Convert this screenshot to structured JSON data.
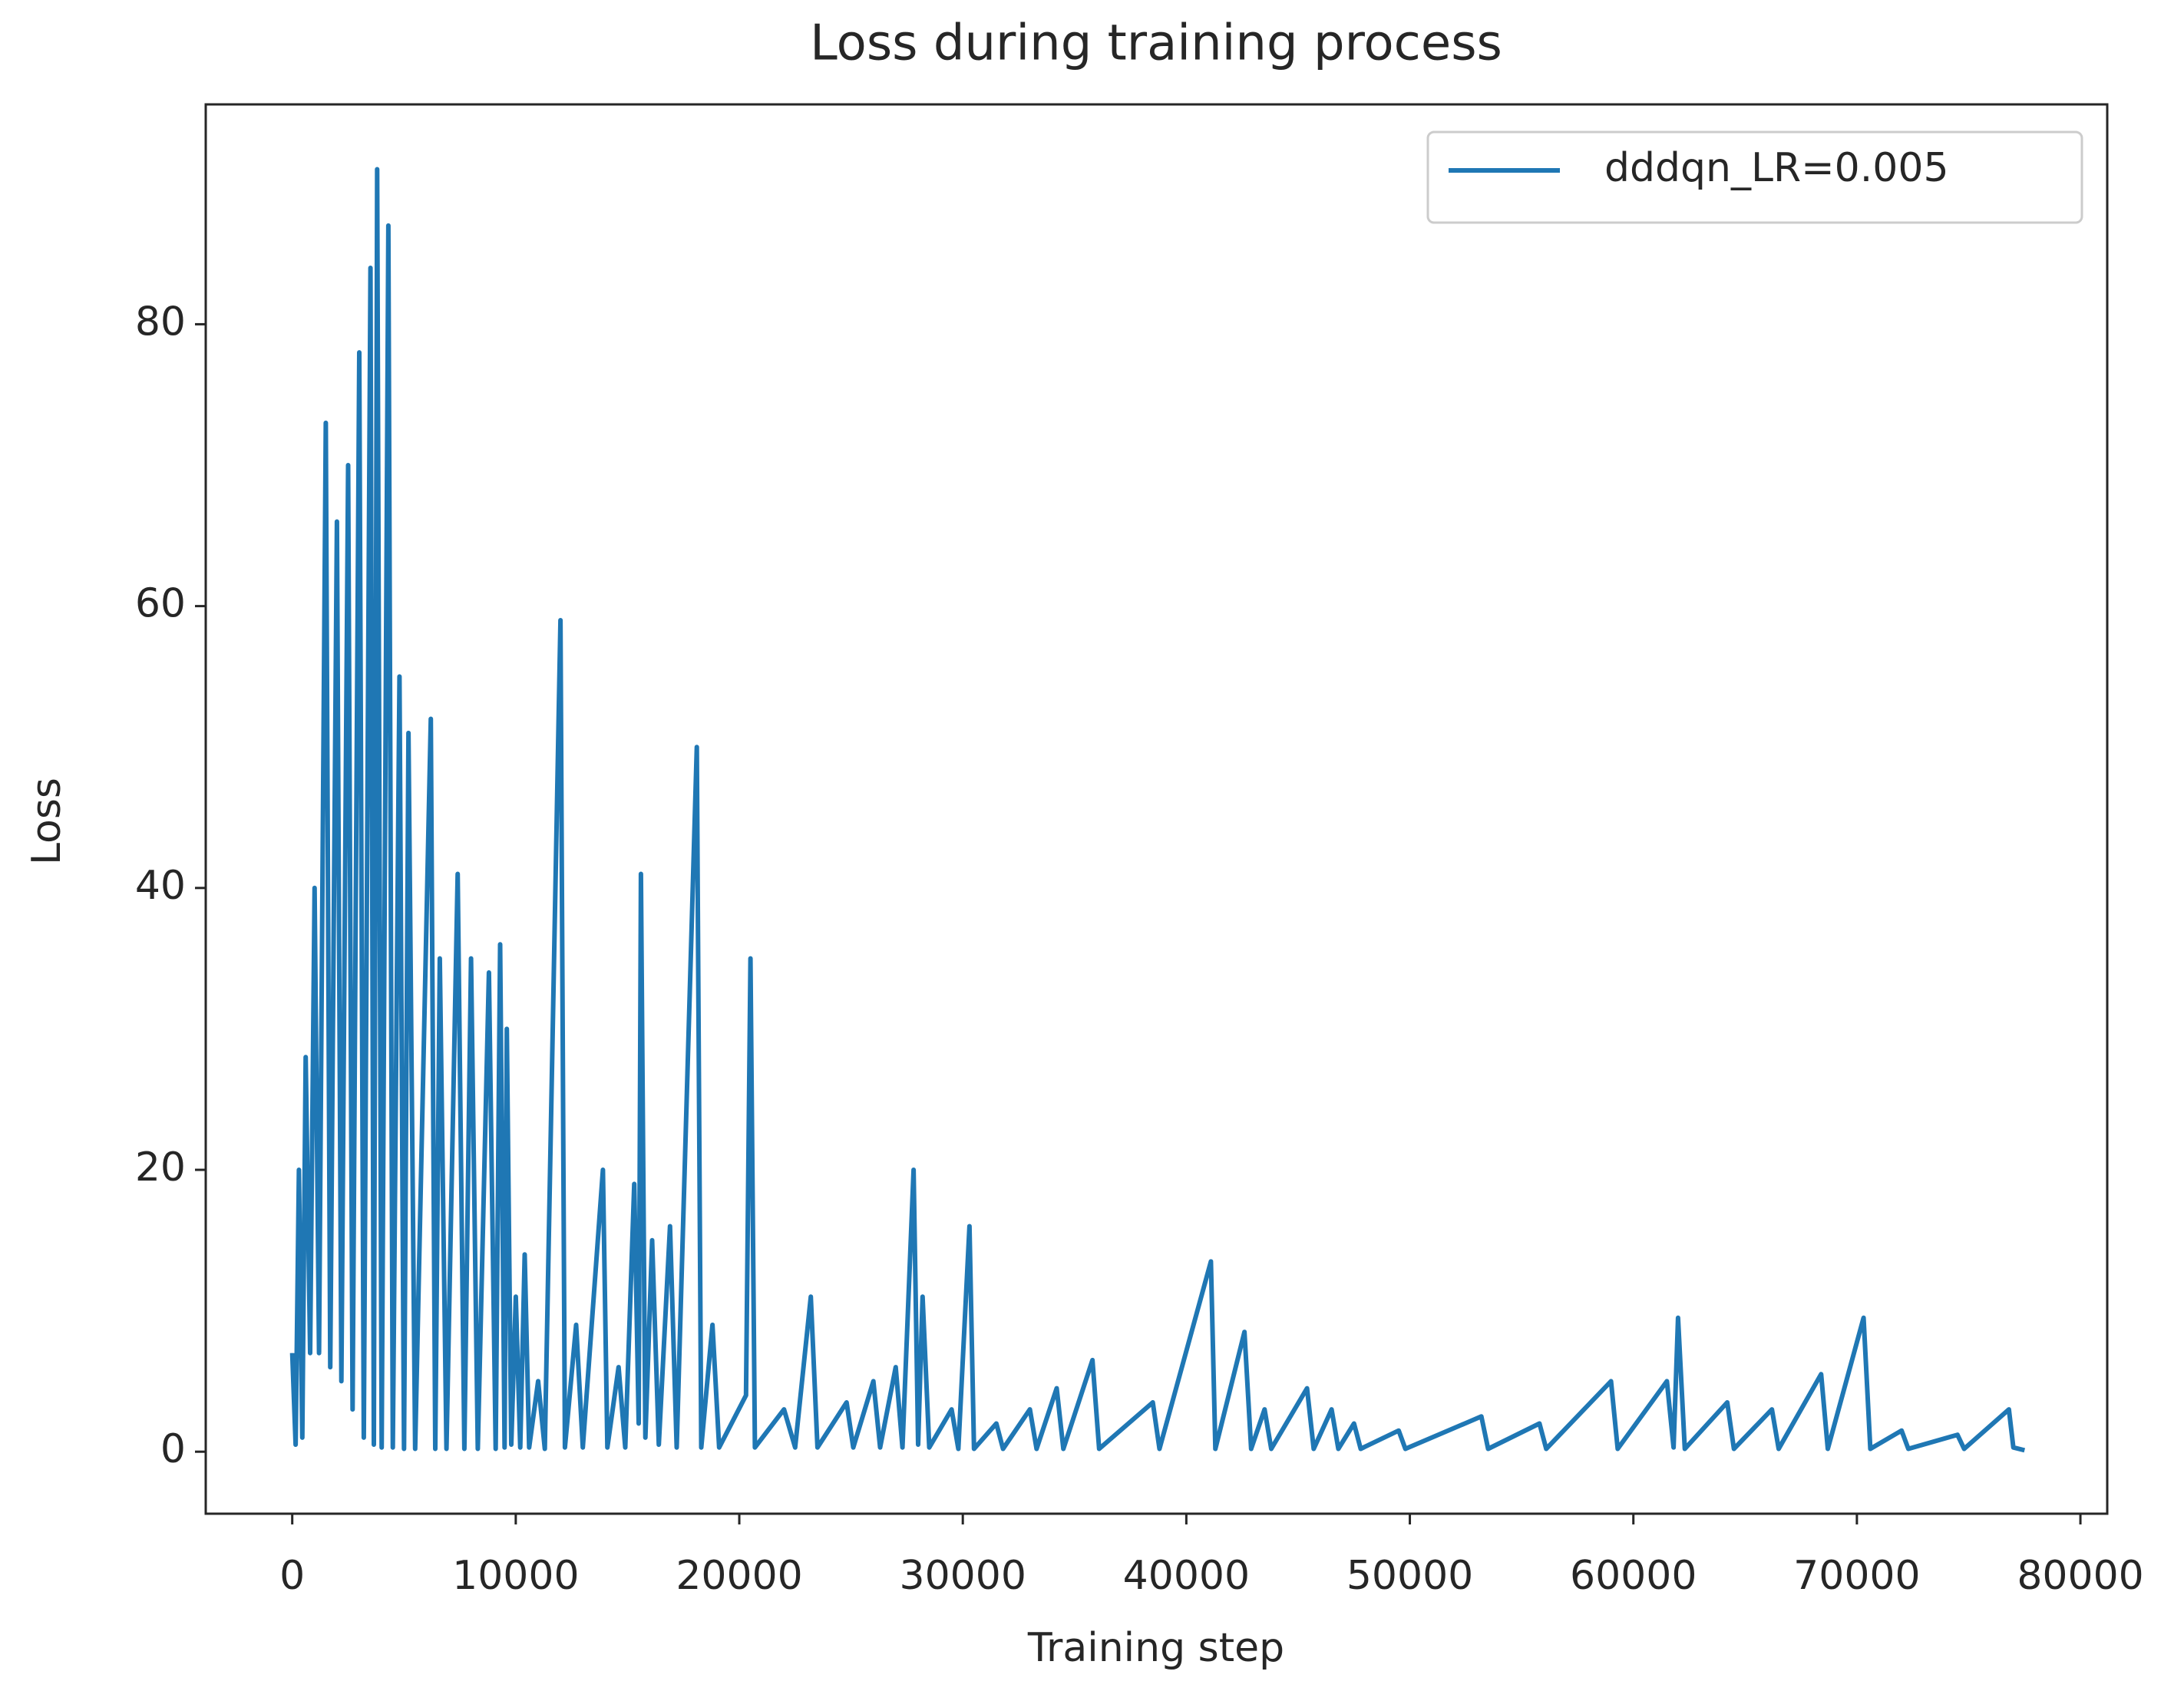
{
  "chart_data": {
    "type": "line",
    "title": "Loss during training process",
    "x_label": "Training step",
    "y_label": "Loss",
    "x": [
      0,
      150,
      300,
      450,
      600,
      800,
      1000,
      1200,
      1500,
      1700,
      2000,
      2200,
      2500,
      2700,
      3000,
      3200,
      3500,
      3650,
      3800,
      4000,
      4300,
      4500,
      4800,
      5000,
      5200,
      5500,
      6200,
      6400,
      6600,
      6900,
      7400,
      7700,
      8000,
      8300,
      8800,
      9100,
      9300,
      9500,
      9600,
      9800,
      10000,
      10200,
      10400,
      10600,
      11000,
      11300,
      12000,
      12200,
      12700,
      13000,
      13900,
      14100,
      14600,
      14900,
      15300,
      15500,
      15600,
      15800,
      16100,
      16400,
      16900,
      17200,
      18100,
      18300,
      18800,
      19100,
      20300,
      20500,
      20700,
      22000,
      22500,
      23200,
      23500,
      24800,
      25100,
      26000,
      26300,
      27000,
      27300,
      27800,
      28000,
      28200,
      28500,
      29500,
      29800,
      30300,
      30500,
      31500,
      31800,
      33000,
      33300,
      34200,
      34500,
      35800,
      36100,
      38500,
      38800,
      41100,
      41300,
      42600,
      42900,
      43500,
      43800,
      45400,
      45700,
      46500,
      46800,
      47500,
      47800,
      49500,
      49800,
      53200,
      53500,
      55800,
      56100,
      59000,
      59300,
      61500,
      61800,
      62000,
      62300,
      64200,
      64500,
      66200,
      66500,
      68400,
      68700,
      70300,
      70600,
      72000,
      72300,
      74500,
      74800,
      76800,
      77000,
      77500
    ],
    "series": [
      {
        "name": "dddqn_LR=0.005",
        "color": "#1f77b4",
        "values": [
          7,
          0.5,
          20,
          1,
          28,
          7,
          40,
          7,
          73,
          6,
          66,
          5,
          70,
          3,
          78,
          1,
          84,
          0.5,
          91,
          0.3,
          87,
          0.3,
          55,
          0.2,
          51,
          0.2,
          52,
          0.2,
          35,
          0.2,
          41,
          0.2,
          35,
          0.2,
          34,
          0.2,
          36,
          0.3,
          30,
          0.5,
          11,
          0.3,
          14,
          0.3,
          5,
          0.2,
          59,
          0.3,
          9,
          0.3,
          20,
          0.3,
          6,
          0.3,
          19,
          2,
          41,
          1,
          15,
          0.5,
          16,
          0.3,
          50,
          0.3,
          9,
          0.3,
          4,
          35,
          0.3,
          3,
          0.3,
          11,
          0.3,
          3.5,
          0.3,
          5,
          0.3,
          6,
          0.3,
          20,
          0.5,
          11,
          0.3,
          3,
          0.2,
          16,
          0.2,
          2,
          0.2,
          3,
          0.2,
          4.5,
          0.2,
          6.5,
          0.2,
          3.5,
          0.2,
          13.5,
          0.2,
          8.5,
          0.2,
          3,
          0.2,
          4.5,
          0.2,
          3,
          0.2,
          2,
          0.2,
          1.5,
          0.2,
          2.5,
          0.2,
          2,
          0.2,
          5,
          0.2,
          5,
          0.3,
          9.5,
          0.2,
          3.5,
          0.2,
          3,
          0.2,
          5.5,
          0.2,
          9.5,
          0.2,
          1.5,
          0.2,
          1.2,
          0.2,
          3,
          0.3,
          0.1
        ]
      }
    ],
    "xlim": [
      -3870,
      81200
    ],
    "ylim": [
      -4.4,
      95.6
    ],
    "xticks": [
      0,
      10000,
      20000,
      30000,
      40000,
      50000,
      60000,
      70000,
      80000
    ],
    "yticks": [
      0,
      20,
      40,
      60,
      80
    ],
    "grid": false,
    "legend": "upper right"
  }
}
